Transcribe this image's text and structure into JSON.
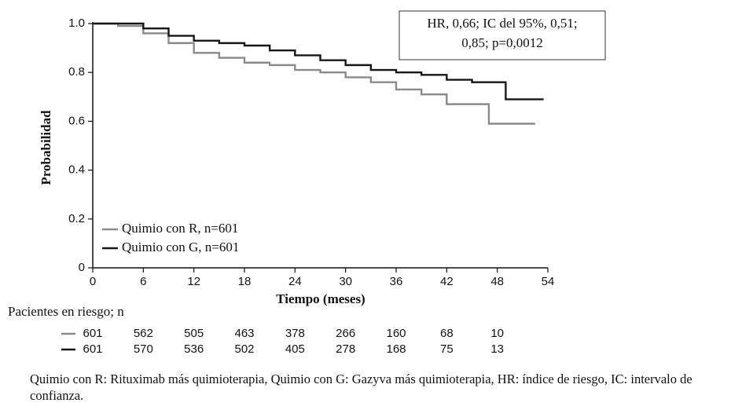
{
  "chart_data": {
    "type": "line",
    "step": true,
    "xlabel": "Tiempo (meses)",
    "ylabel": "Probabilidad",
    "annotation": [
      "HR, 0,66; IC del 95%, 0,51;",
      "0,85; p=0,0012"
    ],
    "x": [
      0,
      3,
      6,
      9,
      12,
      15,
      18,
      21,
      24,
      27,
      30,
      33,
      36,
      39,
      42,
      45,
      47,
      49,
      52.5,
      53.5
    ],
    "series": [
      {
        "name": "Quimio con R, n=601",
        "color": "#8a8a8a",
        "values": [
          1.0,
          0.99,
          0.96,
          0.92,
          0.88,
          0.86,
          0.84,
          0.83,
          0.81,
          0.8,
          0.78,
          0.76,
          0.73,
          0.71,
          0.67,
          0.67,
          0.59,
          0.59,
          0.59,
          null
        ]
      },
      {
        "name": "Quimio con G, n=601",
        "color": "#161616",
        "values": [
          1.0,
          1.0,
          0.98,
          0.95,
          0.93,
          0.92,
          0.91,
          0.89,
          0.87,
          0.85,
          0.83,
          0.81,
          0.8,
          0.79,
          0.77,
          0.76,
          0.76,
          0.69,
          0.69,
          0.69
        ]
      }
    ],
    "xlim": [
      0,
      54
    ],
    "xticks": [
      0,
      6,
      12,
      18,
      24,
      30,
      36,
      42,
      48,
      54
    ],
    "ylim": [
      0,
      1
    ],
    "yticks": [
      0,
      0.2,
      0.4,
      0.6,
      0.8,
      {
        "value": 1,
        "label": "1.0"
      }
    ],
    "grid": false,
    "legend": "lower left",
    "at_risk": {
      "title": "Pacientes en riesgo; n",
      "rows": [
        [
          601,
          562,
          505,
          463,
          378,
          266,
          160,
          68,
          10
        ],
        [
          601,
          570,
          536,
          502,
          405,
          278,
          168,
          75,
          13
        ]
      ]
    },
    "footnote": "Quimio con R: Rituximab más quimioterapia, Quimio con G: Gazyva más quimioterapia, HR: índice de riesgo, IC: intervalo de confianza."
  }
}
